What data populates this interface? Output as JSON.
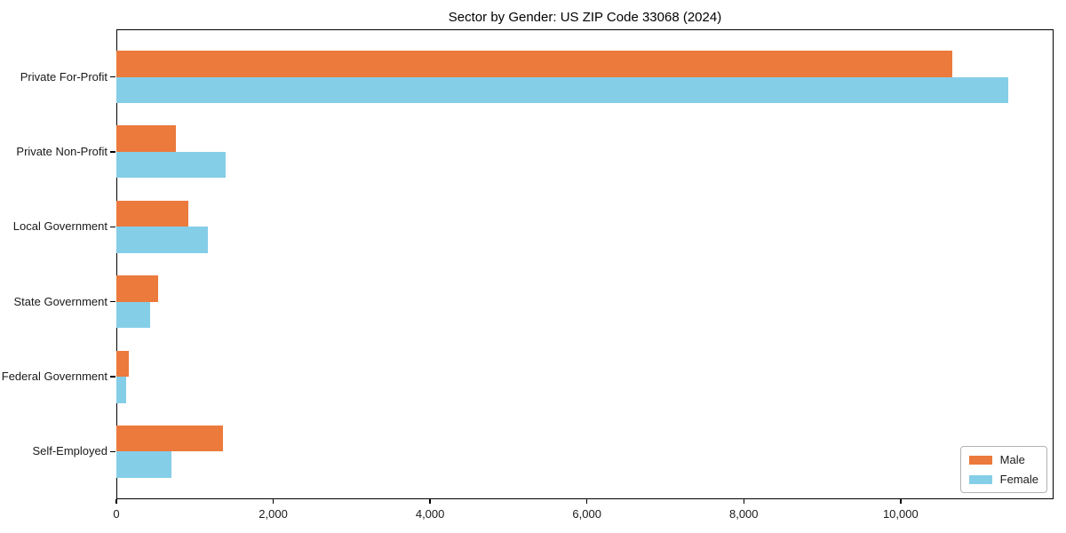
{
  "chart_data": {
    "type": "bar",
    "orientation": "horizontal",
    "title": "Sector by Gender: US ZIP Code 33068 (2024)",
    "categories": [
      "Private For-Profit",
      "Private Non-Profit",
      "Local Government",
      "State Government",
      "Federal Government",
      "Self-Employed"
    ],
    "series": [
      {
        "name": "Male",
        "color": "#EB7A3C",
        "values": [
          10660,
          760,
          920,
          530,
          160,
          1360
        ]
      },
      {
        "name": "Female",
        "color": "#85CEE8",
        "values": [
          11370,
          1390,
          1170,
          430,
          130,
          700
        ]
      }
    ],
    "xlabel": "",
    "ylabel": "",
    "xlim": [
      0,
      11950
    ],
    "xticks": [
      0,
      2000,
      4000,
      6000,
      8000,
      10000
    ],
    "xtick_labels": [
      "0",
      "2,000",
      "4,000",
      "6,000",
      "8,000",
      "10,000"
    ],
    "grid": false,
    "legend_position": "lower right",
    "background": "#ffffff",
    "spine_color": "#000000"
  }
}
